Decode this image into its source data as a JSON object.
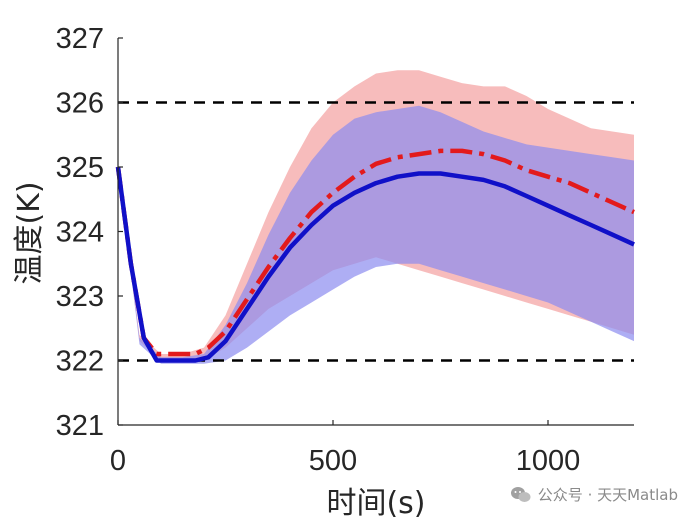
{
  "chart_data": {
    "type": "line",
    "title": "",
    "xlabel": "时间(s)",
    "ylabel": "温度(K)",
    "xlim": [
      0,
      1200
    ],
    "ylim": [
      321,
      327
    ],
    "xticks": [
      0,
      500,
      1000
    ],
    "yticks": [
      321,
      322,
      323,
      324,
      325,
      326,
      327
    ],
    "reference_lines": [
      {
        "name": "upper-limit",
        "y": 326,
        "style": "dashed",
        "color": "#000000"
      },
      {
        "name": "lower-limit",
        "y": 322,
        "style": "dashed",
        "color": "#000000"
      }
    ],
    "bands": [
      {
        "name": "red-band",
        "color": "#f4a0a0",
        "x": [
          0,
          50,
          100,
          150,
          200,
          250,
          300,
          350,
          400,
          450,
          500,
          550,
          600,
          650,
          700,
          750,
          800,
          850,
          900,
          950,
          1000,
          1050,
          1100,
          1150,
          1200
        ],
        "lower": [
          325.0,
          322.3,
          322.0,
          322.0,
          322.0,
          322.2,
          322.5,
          322.8,
          323.0,
          323.2,
          323.4,
          323.5,
          323.6,
          323.5,
          323.4,
          323.3,
          323.2,
          323.1,
          323.0,
          322.9,
          322.8,
          322.7,
          322.6,
          322.5,
          322.4
        ],
        "upper": [
          325.0,
          322.4,
          322.1,
          322.1,
          322.2,
          322.7,
          323.5,
          324.3,
          325.0,
          325.6,
          326.0,
          326.25,
          326.45,
          326.5,
          326.5,
          326.4,
          326.3,
          326.25,
          326.25,
          326.1,
          325.9,
          325.75,
          325.6,
          325.55,
          325.5
        ]
      },
      {
        "name": "blue-band",
        "color": "#8c8cf0",
        "x": [
          0,
          50,
          100,
          150,
          200,
          250,
          300,
          350,
          400,
          450,
          500,
          550,
          600,
          650,
          700,
          750,
          800,
          850,
          900,
          950,
          1000,
          1050,
          1100,
          1150,
          1200
        ],
        "lower": [
          325.0,
          322.25,
          321.95,
          321.95,
          321.95,
          322.0,
          322.2,
          322.45,
          322.7,
          322.9,
          323.1,
          323.3,
          323.45,
          323.5,
          323.5,
          323.4,
          323.3,
          323.2,
          323.1,
          323.0,
          322.9,
          322.75,
          322.6,
          322.45,
          322.3
        ],
        "upper": [
          325.0,
          322.35,
          322.05,
          322.05,
          322.1,
          322.55,
          323.2,
          323.95,
          324.6,
          325.1,
          325.5,
          325.75,
          325.85,
          325.9,
          325.95,
          325.85,
          325.7,
          325.55,
          325.45,
          325.35,
          325.3,
          325.25,
          325.2,
          325.15,
          325.1
        ]
      }
    ],
    "series": [
      {
        "name": "red-dashdot",
        "color": "#e31a1c",
        "style": "dashdot",
        "x": [
          0,
          30,
          60,
          90,
          120,
          150,
          180,
          210,
          250,
          300,
          350,
          400,
          450,
          500,
          550,
          600,
          650,
          700,
          750,
          800,
          850,
          900,
          950,
          1000,
          1050,
          1100,
          1150,
          1200
        ],
        "y": [
          325.0,
          323.5,
          322.35,
          322.1,
          322.1,
          322.1,
          322.1,
          322.2,
          322.45,
          322.95,
          323.45,
          323.9,
          324.3,
          324.6,
          324.85,
          325.05,
          325.15,
          325.2,
          325.25,
          325.25,
          325.2,
          325.1,
          324.95,
          324.85,
          324.75,
          324.6,
          324.45,
          324.3
        ]
      },
      {
        "name": "blue-solid",
        "color": "#1010c8",
        "style": "solid",
        "x": [
          0,
          30,
          60,
          90,
          120,
          150,
          180,
          210,
          250,
          300,
          350,
          400,
          450,
          500,
          550,
          600,
          650,
          700,
          750,
          800,
          850,
          900,
          950,
          1000,
          1050,
          1100,
          1150,
          1200
        ],
        "y": [
          325.0,
          323.5,
          322.35,
          322.0,
          322.0,
          322.0,
          322.0,
          322.05,
          322.3,
          322.8,
          323.3,
          323.75,
          324.1,
          324.4,
          324.6,
          324.75,
          324.85,
          324.9,
          324.9,
          324.85,
          324.8,
          324.7,
          324.55,
          324.4,
          324.25,
          324.1,
          323.95,
          323.8
        ]
      }
    ]
  },
  "watermark": {
    "text": "公众号 · 天天Matlab"
  }
}
